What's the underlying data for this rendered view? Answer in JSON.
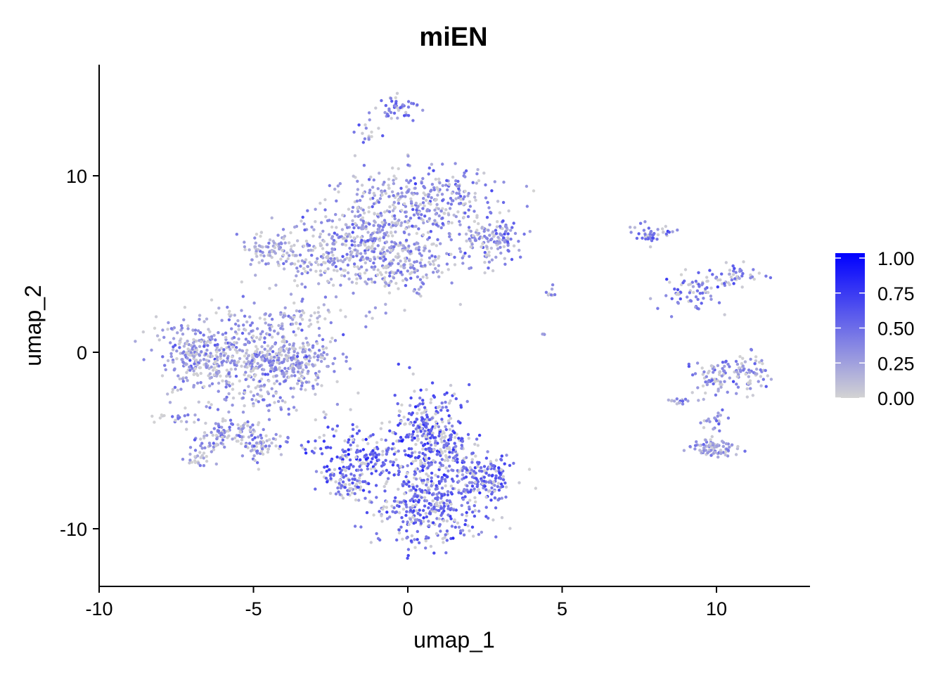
{
  "chart_data": {
    "type": "scatter",
    "title": "miEN",
    "xlabel": "umap_1",
    "ylabel": "umap_2",
    "xlim": [
      -10,
      13.2
    ],
    "ylim": [
      -13.2,
      16.4
    ],
    "xticks": [
      -10,
      -5,
      0,
      5,
      10
    ],
    "xtick_labels": [
      "-10",
      "-5",
      "0",
      "5",
      "10"
    ],
    "yticks": [
      -10,
      0,
      10
    ],
    "ytick_labels": [
      "-10",
      "0",
      "10"
    ],
    "grid": false,
    "legend_position": "right",
    "colorbar": {
      "min": 0,
      "max": 1,
      "low_color": "#d3d3d3",
      "high_color": "#0000ff",
      "ticks": [
        0,
        0.25,
        0.5,
        0.75,
        1
      ],
      "tick_labels": [
        "0.00",
        "0.25",
        "0.50",
        "0.75",
        "1.00"
      ]
    },
    "clusters": [
      {
        "center": [
          -4.9,
          -0.6
        ],
        "spread": [
          1.1,
          1.4
        ],
        "n": 520,
        "mean_value": 0.32
      },
      {
        "center": [
          -7.0,
          -0.2
        ],
        "spread": [
          0.55,
          0.9
        ],
        "n": 170,
        "mean_value": 0.3
      },
      {
        "center": [
          -3.5,
          -0.5
        ],
        "spread": [
          0.6,
          0.6
        ],
        "n": 120,
        "mean_value": 0.28
      },
      {
        "center": [
          -6.0,
          -4.8
        ],
        "spread": [
          0.6,
          0.5
        ],
        "n": 110,
        "mean_value": 0.35
      },
      {
        "center": [
          -4.7,
          -5.3
        ],
        "spread": [
          0.4,
          0.4
        ],
        "n": 60,
        "mean_value": 0.33
      },
      {
        "center": [
          -6.8,
          -6.0
        ],
        "spread": [
          0.25,
          0.25
        ],
        "n": 25,
        "mean_value": 0.25
      },
      {
        "center": [
          -7.5,
          -3.7
        ],
        "spread": [
          0.3,
          0.15
        ],
        "n": 18,
        "mean_value": 0.4
      },
      {
        "center": [
          -3.5,
          2.1
        ],
        "spread": [
          0.9,
          0.25
        ],
        "n": 45,
        "mean_value": 0.2
      },
      {
        "center": [
          -4.5,
          5.9
        ],
        "spread": [
          0.5,
          0.5
        ],
        "n": 70,
        "mean_value": 0.25
      },
      {
        "center": [
          -2.8,
          5.4
        ],
        "spread": [
          0.8,
          0.9
        ],
        "n": 160,
        "mean_value": 0.27
      },
      {
        "center": [
          -1.2,
          6.6
        ],
        "spread": [
          0.9,
          1.2
        ],
        "n": 300,
        "mean_value": 0.33
      },
      {
        "center": [
          0.8,
          8.6
        ],
        "spread": [
          1.1,
          0.9
        ],
        "n": 300,
        "mean_value": 0.33
      },
      {
        "center": [
          0.0,
          5.0
        ],
        "spread": [
          0.8,
          0.9
        ],
        "n": 170,
        "mean_value": 0.3
      },
      {
        "center": [
          2.5,
          6.2
        ],
        "spread": [
          0.5,
          0.7
        ],
        "n": 100,
        "mean_value": 0.35
      },
      {
        "center": [
          3.1,
          6.6
        ],
        "spread": [
          0.35,
          0.4
        ],
        "n": 40,
        "mean_value": 0.38
      },
      {
        "center": [
          -0.3,
          13.8
        ],
        "spread": [
          0.35,
          0.35
        ],
        "n": 45,
        "mean_value": 0.45
      },
      {
        "center": [
          -1.4,
          12.6
        ],
        "spread": [
          0.2,
          0.4
        ],
        "n": 15,
        "mean_value": 0.4
      },
      {
        "center": [
          0.6,
          -4.8
        ],
        "spread": [
          0.55,
          1.5
        ],
        "n": 320,
        "mean_value": 0.55
      },
      {
        "center": [
          0.7,
          -8.6
        ],
        "spread": [
          0.9,
          1.1
        ],
        "n": 380,
        "mean_value": 0.5
      },
      {
        "center": [
          -1.4,
          -5.9
        ],
        "spread": [
          0.8,
          0.7
        ],
        "n": 180,
        "mean_value": 0.6
      },
      {
        "center": [
          -2.0,
          -7.4
        ],
        "spread": [
          0.35,
          0.4
        ],
        "n": 70,
        "mean_value": 0.52
      },
      {
        "center": [
          2.6,
          -7.0
        ],
        "spread": [
          0.45,
          0.6
        ],
        "n": 150,
        "mean_value": 0.5
      },
      {
        "center": [
          1.5,
          -5.5
        ],
        "spread": [
          0.35,
          0.5
        ],
        "n": 60,
        "mean_value": 0.48
      },
      {
        "center": [
          4.6,
          3.3
        ],
        "spread": [
          0.1,
          0.3
        ],
        "n": 8,
        "mean_value": 0.3
      },
      {
        "center": [
          4.4,
          1.0
        ],
        "spread": [
          0.05,
          0.05
        ],
        "n": 3,
        "mean_value": 0.2
      },
      {
        "center": [
          7.9,
          6.7
        ],
        "spread": [
          0.3,
          0.25
        ],
        "n": 45,
        "mean_value": 0.4
      },
      {
        "center": [
          9.2,
          3.4
        ],
        "spread": [
          0.5,
          0.5
        ],
        "n": 70,
        "mean_value": 0.4
      },
      {
        "center": [
          10.6,
          4.3
        ],
        "spread": [
          0.45,
          0.3
        ],
        "n": 45,
        "mean_value": 0.42
      },
      {
        "center": [
          9.9,
          -1.4
        ],
        "spread": [
          0.35,
          0.5
        ],
        "n": 60,
        "mean_value": 0.3
      },
      {
        "center": [
          11.0,
          -1.2
        ],
        "spread": [
          0.35,
          0.55
        ],
        "n": 70,
        "mean_value": 0.35
      },
      {
        "center": [
          8.8,
          -2.8
        ],
        "spread": [
          0.25,
          0.12
        ],
        "n": 15,
        "mean_value": 0.3
      },
      {
        "center": [
          10.0,
          -3.8
        ],
        "spread": [
          0.2,
          0.3
        ],
        "n": 20,
        "mean_value": 0.35
      },
      {
        "center": [
          9.9,
          -5.4
        ],
        "spread": [
          0.35,
          0.25
        ],
        "n": 90,
        "mean_value": 0.3
      }
    ]
  }
}
